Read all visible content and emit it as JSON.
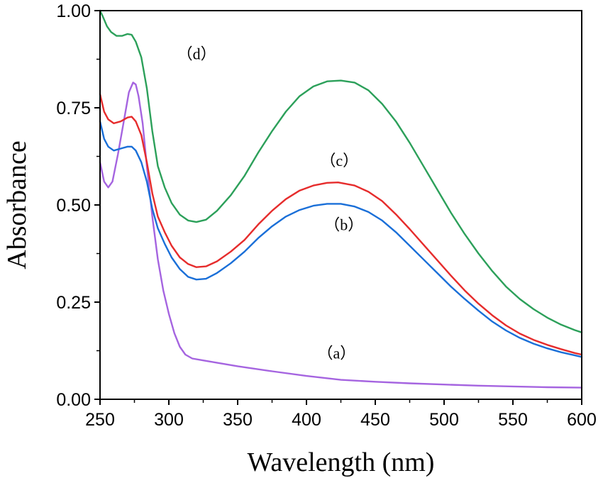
{
  "chart_data": {
    "type": "line",
    "title": "",
    "xlabel": "Wavelength (nm)",
    "ylabel": "Absorbance",
    "xlim": [
      250,
      600
    ],
    "ylim": [
      0,
      1.0
    ],
    "x_ticks": [
      250,
      300,
      350,
      400,
      450,
      500,
      550,
      600
    ],
    "y_ticks": [
      0.0,
      0.25,
      0.5,
      0.75,
      1.0
    ],
    "x_tick_labels": [
      "250",
      "300",
      "350",
      "400",
      "450",
      "500",
      "550",
      "600"
    ],
    "y_tick_labels": [
      "0.00",
      "0.25",
      "0.50",
      "0.75",
      "1.00"
    ],
    "grid": false,
    "series": [
      {
        "name": "(a)",
        "label": "（a）",
        "color": "#a564e0",
        "label_at": [
          408,
          0.105
        ],
        "points": [
          [
            250,
            0.61
          ],
          [
            253,
            0.56
          ],
          [
            256,
            0.545
          ],
          [
            259,
            0.56
          ],
          [
            263,
            0.63
          ],
          [
            267,
            0.71
          ],
          [
            271,
            0.79
          ],
          [
            274,
            0.815
          ],
          [
            276,
            0.81
          ],
          [
            278,
            0.78
          ],
          [
            281,
            0.71
          ],
          [
            284,
            0.6
          ],
          [
            288,
            0.47
          ],
          [
            292,
            0.36
          ],
          [
            296,
            0.28
          ],
          [
            300,
            0.22
          ],
          [
            304,
            0.17
          ],
          [
            308,
            0.135
          ],
          [
            312,
            0.115
          ],
          [
            317,
            0.105
          ],
          [
            325,
            0.1
          ],
          [
            350,
            0.085
          ],
          [
            375,
            0.072
          ],
          [
            400,
            0.06
          ],
          [
            425,
            0.05
          ],
          [
            450,
            0.045
          ],
          [
            475,
            0.041
          ],
          [
            500,
            0.038
          ],
          [
            525,
            0.035
          ],
          [
            550,
            0.033
          ],
          [
            575,
            0.031
          ],
          [
            600,
            0.03
          ]
        ]
      },
      {
        "name": "(b)",
        "label": "（b）",
        "color": "#1a6fd8",
        "label_at": [
          413,
          0.435
        ],
        "points": [
          [
            250,
            0.715
          ],
          [
            253,
            0.67
          ],
          [
            256,
            0.65
          ],
          [
            260,
            0.64
          ],
          [
            265,
            0.645
          ],
          [
            270,
            0.65
          ],
          [
            273,
            0.65
          ],
          [
            276,
            0.64
          ],
          [
            280,
            0.61
          ],
          [
            284,
            0.56
          ],
          [
            288,
            0.49
          ],
          [
            292,
            0.44
          ],
          [
            297,
            0.4
          ],
          [
            302,
            0.365
          ],
          [
            308,
            0.335
          ],
          [
            314,
            0.315
          ],
          [
            320,
            0.308
          ],
          [
            327,
            0.31
          ],
          [
            335,
            0.325
          ],
          [
            345,
            0.35
          ],
          [
            355,
            0.38
          ],
          [
            365,
            0.415
          ],
          [
            375,
            0.445
          ],
          [
            385,
            0.47
          ],
          [
            395,
            0.487
          ],
          [
            405,
            0.498
          ],
          [
            415,
            0.503
          ],
          [
            425,
            0.503
          ],
          [
            435,
            0.496
          ],
          [
            445,
            0.482
          ],
          [
            455,
            0.46
          ],
          [
            465,
            0.43
          ],
          [
            475,
            0.395
          ],
          [
            485,
            0.36
          ],
          [
            495,
            0.325
          ],
          [
            505,
            0.29
          ],
          [
            515,
            0.258
          ],
          [
            525,
            0.228
          ],
          [
            535,
            0.2
          ],
          [
            545,
            0.177
          ],
          [
            555,
            0.158
          ],
          [
            565,
            0.143
          ],
          [
            575,
            0.131
          ],
          [
            585,
            0.121
          ],
          [
            595,
            0.113
          ],
          [
            600,
            0.109
          ]
        ]
      },
      {
        "name": "(c)",
        "label": "（c）",
        "color": "#e62c2c",
        "label_at": [
          410,
          0.6
        ],
        "points": [
          [
            250,
            0.785
          ],
          [
            253,
            0.74
          ],
          [
            256,
            0.72
          ],
          [
            260,
            0.71
          ],
          [
            265,
            0.715
          ],
          [
            270,
            0.725
          ],
          [
            273,
            0.727
          ],
          [
            276,
            0.715
          ],
          [
            280,
            0.68
          ],
          [
            284,
            0.61
          ],
          [
            288,
            0.53
          ],
          [
            292,
            0.47
          ],
          [
            297,
            0.43
          ],
          [
            302,
            0.395
          ],
          [
            308,
            0.365
          ],
          [
            314,
            0.348
          ],
          [
            320,
            0.34
          ],
          [
            327,
            0.342
          ],
          [
            335,
            0.355
          ],
          [
            345,
            0.38
          ],
          [
            355,
            0.41
          ],
          [
            365,
            0.45
          ],
          [
            375,
            0.485
          ],
          [
            385,
            0.515
          ],
          [
            395,
            0.537
          ],
          [
            405,
            0.55
          ],
          [
            415,
            0.557
          ],
          [
            423,
            0.558
          ],
          [
            435,
            0.55
          ],
          [
            445,
            0.534
          ],
          [
            455,
            0.51
          ],
          [
            465,
            0.476
          ],
          [
            475,
            0.438
          ],
          [
            485,
            0.398
          ],
          [
            495,
            0.358
          ],
          [
            505,
            0.318
          ],
          [
            515,
            0.28
          ],
          [
            525,
            0.246
          ],
          [
            535,
            0.216
          ],
          [
            545,
            0.19
          ],
          [
            555,
            0.169
          ],
          [
            565,
            0.153
          ],
          [
            575,
            0.14
          ],
          [
            585,
            0.129
          ],
          [
            595,
            0.119
          ],
          [
            600,
            0.115
          ]
        ]
      },
      {
        "name": "(d)",
        "label": "（d）",
        "color": "#2ca05a",
        "label_at": [
          306,
          0.875
        ],
        "points": [
          [
            250,
            1.0
          ],
          [
            252,
            0.985
          ],
          [
            255,
            0.96
          ],
          [
            258,
            0.945
          ],
          [
            262,
            0.935
          ],
          [
            266,
            0.935
          ],
          [
            270,
            0.94
          ],
          [
            273,
            0.938
          ],
          [
            276,
            0.92
          ],
          [
            280,
            0.88
          ],
          [
            284,
            0.8
          ],
          [
            288,
            0.69
          ],
          [
            292,
            0.6
          ],
          [
            297,
            0.545
          ],
          [
            302,
            0.505
          ],
          [
            308,
            0.475
          ],
          [
            314,
            0.46
          ],
          [
            320,
            0.456
          ],
          [
            327,
            0.462
          ],
          [
            335,
            0.485
          ],
          [
            345,
            0.525
          ],
          [
            355,
            0.575
          ],
          [
            365,
            0.635
          ],
          [
            375,
            0.69
          ],
          [
            385,
            0.74
          ],
          [
            395,
            0.78
          ],
          [
            405,
            0.805
          ],
          [
            415,
            0.818
          ],
          [
            425,
            0.82
          ],
          [
            435,
            0.815
          ],
          [
            445,
            0.795
          ],
          [
            455,
            0.76
          ],
          [
            465,
            0.715
          ],
          [
            475,
            0.66
          ],
          [
            485,
            0.6
          ],
          [
            495,
            0.54
          ],
          [
            505,
            0.48
          ],
          [
            515,
            0.425
          ],
          [
            525,
            0.375
          ],
          [
            535,
            0.33
          ],
          [
            545,
            0.29
          ],
          [
            555,
            0.258
          ],
          [
            565,
            0.232
          ],
          [
            575,
            0.21
          ],
          [
            585,
            0.192
          ],
          [
            595,
            0.178
          ],
          [
            600,
            0.172
          ]
        ]
      }
    ]
  }
}
